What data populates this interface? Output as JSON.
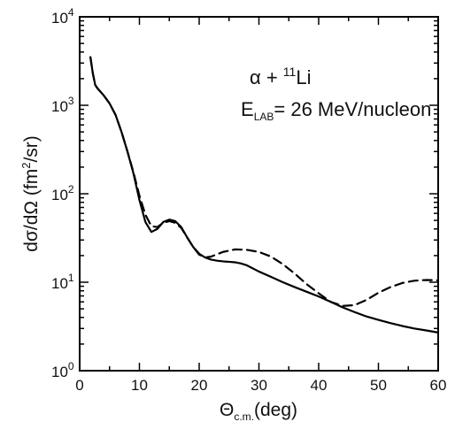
{
  "chart_data": {
    "type": "line",
    "title": "",
    "xlabel": {
      "main": "Θ",
      "sub": "c.m.",
      "suffix": "(deg)"
    },
    "ylabel": {
      "prefix": "dσ/dΩ (fm",
      "sup": "2",
      "suffix": "/sr)"
    },
    "xlim": [
      0,
      60
    ],
    "ylim": [
      1,
      10000
    ],
    "yscale": "log",
    "grid": false,
    "legend": "none",
    "x_ticks": [
      {
        "value": 0,
        "label": "0"
      },
      {
        "value": 10,
        "label": "10"
      },
      {
        "value": 20,
        "label": "20"
      },
      {
        "value": 30,
        "label": "30"
      },
      {
        "value": 40,
        "label": "40"
      },
      {
        "value": 50,
        "label": "50"
      },
      {
        "value": 60,
        "label": "60"
      }
    ],
    "y_ticks": [
      {
        "value": 1,
        "base": "10",
        "exp": "0"
      },
      {
        "value": 10,
        "base": "10",
        "exp": "1"
      },
      {
        "value": 100,
        "base": "10",
        "exp": "2"
      },
      {
        "value": 1000,
        "base": "10",
        "exp": "3"
      },
      {
        "value": 10000,
        "base": "10",
        "exp": "4"
      }
    ],
    "annotations": {
      "reaction": {
        "a": "α + ",
        "mass": "11",
        "nucleus": "Li"
      },
      "energy": {
        "e": "E",
        "sub": "LAB",
        "rest": "= 26 MeV/nucleon"
      }
    },
    "series": [
      {
        "style": "solid",
        "color": "#000000",
        "x": [
          1.8,
          2.2,
          2.6,
          3,
          4,
          5,
          6,
          7,
          8,
          9,
          10,
          11,
          12,
          13,
          14,
          15,
          16,
          17,
          18,
          19,
          20,
          21,
          22,
          23,
          24,
          25,
          26,
          27,
          28,
          30,
          32,
          34,
          36,
          38,
          40,
          42,
          44,
          46,
          48,
          50,
          52,
          54,
          56,
          58,
          60
        ],
        "y": [
          3500,
          2300,
          1700,
          1550,
          1300,
          1050,
          780,
          500,
          300,
          170,
          85,
          48,
          37,
          40,
          48,
          51,
          49,
          42,
          32,
          25,
          21,
          19,
          18,
          17.5,
          17.2,
          17,
          16.8,
          16.3,
          15.5,
          13.2,
          11.5,
          10,
          8.8,
          7.8,
          6.9,
          6.0,
          5.2,
          4.6,
          4.1,
          3.75,
          3.45,
          3.2,
          3.0,
          2.85,
          2.7
        ]
      },
      {
        "style": "dashed",
        "color": "#000000",
        "x": [
          1.8,
          2.2,
          2.6,
          3,
          4,
          5,
          6,
          7,
          8,
          9,
          10,
          11,
          12,
          13,
          14,
          15,
          16,
          17,
          18,
          19,
          20,
          21,
          22,
          24,
          26,
          28,
          30,
          32,
          34,
          36,
          38,
          40,
          42,
          44,
          46,
          48,
          50,
          52,
          54,
          56,
          58,
          60
        ],
        "y": [
          3500,
          2300,
          1700,
          1550,
          1300,
          1050,
          780,
          500,
          300,
          175,
          95,
          58,
          43,
          42,
          47,
          49,
          47,
          41,
          32,
          25,
          20.5,
          19,
          19.5,
          22,
          23.5,
          23.2,
          22,
          19.5,
          16,
          12.5,
          9.5,
          7.5,
          6.0,
          5.4,
          5.5,
          6.3,
          7.6,
          8.8,
          9.8,
          10.4,
          10.6,
          10.5
        ]
      }
    ]
  }
}
